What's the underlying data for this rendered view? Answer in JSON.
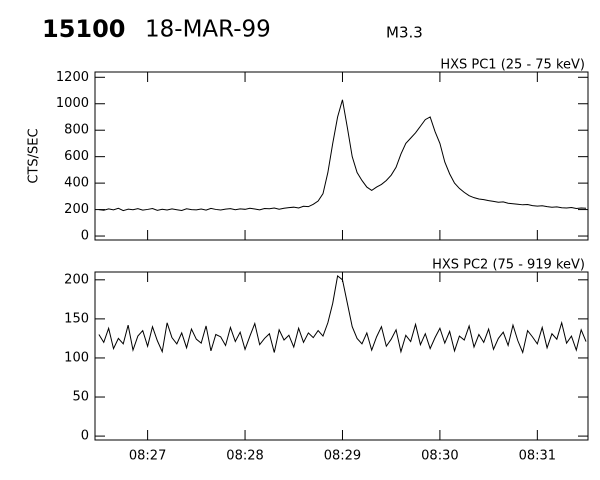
{
  "header": {
    "id": "15100",
    "date": "18-MAR-99",
    "class": "M3.3"
  },
  "chart_data": [
    {
      "type": "line",
      "title": "HXS PC1 (25 - 75 keV)",
      "y_label": "CTS/SEC",
      "x": [
        26.5,
        26.55,
        26.6,
        26.65,
        26.7,
        26.75,
        26.8,
        26.85,
        26.9,
        26.95,
        27,
        27.05,
        27.1,
        27.15,
        27.2,
        27.25,
        27.3,
        27.35,
        27.4,
        27.45,
        27.5,
        27.55,
        27.6,
        27.65,
        27.7,
        27.75,
        27.8,
        27.85,
        27.9,
        27.95,
        28,
        28.05,
        28.1,
        28.15,
        28.2,
        28.25,
        28.3,
        28.35,
        28.4,
        28.45,
        28.5,
        28.55,
        28.6,
        28.65,
        28.7,
        28.75,
        28.8,
        28.85,
        28.9,
        28.95,
        29,
        29.05,
        29.1,
        29.15,
        29.2,
        29.25,
        29.3,
        29.35,
        29.4,
        29.45,
        29.5,
        29.55,
        29.6,
        29.65,
        29.7,
        29.75,
        29.8,
        29.85,
        29.9,
        29.95,
        30,
        30.05,
        30.1,
        30.15,
        30.2,
        30.25,
        30.3,
        30.35,
        30.4,
        30.45,
        30.5,
        30.55,
        30.6,
        30.65,
        30.7,
        30.75,
        30.8,
        30.85,
        30.9,
        30.95,
        31,
        31.05,
        31.1,
        31.15,
        31.2,
        31.25,
        31.3,
        31.35,
        31.4,
        31.45,
        31.5
      ],
      "series": [
        {
          "color": "#000000",
          "values": [
            200,
            195,
            205,
            198,
            210,
            192,
            203,
            199,
            207,
            196,
            201,
            208,
            194,
            202,
            197,
            205,
            199,
            193,
            206,
            200,
            198,
            204,
            196,
            209,
            201,
            197,
            203,
            207,
            199,
            205,
            202,
            210,
            204,
            198,
            208,
            206,
            212,
            203,
            210,
            215,
            218,
            212,
            225,
            222,
            240,
            265,
            320,
            480,
            700,
            900,
            1030,
            820,
            600,
            480,
            420,
            370,
            345,
            370,
            390,
            420,
            460,
            520,
            620,
            700,
            740,
            780,
            830,
            880,
            900,
            790,
            700,
            560,
            470,
            400,
            360,
            330,
            305,
            290,
            280,
            275,
            268,
            262,
            255,
            258,
            248,
            244,
            240,
            236,
            238,
            230,
            226,
            229,
            222,
            218,
            220,
            214,
            212,
            216,
            208,
            212,
            210
          ]
        }
      ],
      "xlim": [
        26.46,
        31.52
      ],
      "xticks": [
        27,
        28,
        29,
        30,
        31
      ],
      "ylim": [
        -30,
        1240
      ],
      "yticks": [
        0,
        200,
        400,
        600,
        800,
        1000,
        1200
      ]
    },
    {
      "type": "line",
      "title": "HXS PC2 (75 - 919 keV)",
      "x": [
        26.5,
        26.55,
        26.6,
        26.65,
        26.7,
        26.75,
        26.8,
        26.85,
        26.9,
        26.95,
        27,
        27.05,
        27.1,
        27.15,
        27.2,
        27.25,
        27.3,
        27.35,
        27.4,
        27.45,
        27.5,
        27.55,
        27.6,
        27.65,
        27.7,
        27.75,
        27.8,
        27.85,
        27.9,
        27.95,
        28,
        28.05,
        28.1,
        28.15,
        28.2,
        28.25,
        28.3,
        28.35,
        28.4,
        28.45,
        28.5,
        28.55,
        28.6,
        28.65,
        28.7,
        28.75,
        28.8,
        28.85,
        28.9,
        28.95,
        29,
        29.05,
        29.1,
        29.15,
        29.2,
        29.25,
        29.3,
        29.35,
        29.4,
        29.45,
        29.5,
        29.55,
        29.6,
        29.65,
        29.7,
        29.75,
        29.8,
        29.85,
        29.9,
        29.95,
        30,
        30.05,
        30.1,
        30.15,
        30.2,
        30.25,
        30.3,
        30.35,
        30.4,
        30.45,
        30.5,
        30.55,
        30.6,
        30.65,
        30.7,
        30.75,
        30.8,
        30.85,
        30.9,
        30.95,
        31,
        31.05,
        31.1,
        31.15,
        31.2,
        31.25,
        31.3,
        31.35,
        31.4,
        31.45,
        31.5
      ],
      "series": [
        {
          "color": "#000000",
          "values": [
            130,
            120,
            138,
            112,
            125,
            118,
            142,
            110,
            128,
            135,
            115,
            140,
            122,
            108,
            145,
            126,
            118,
            132,
            113,
            137,
            124,
            119,
            141,
            109,
            130,
            127,
            116,
            139,
            121,
            133,
            111,
            128,
            144,
            117,
            125,
            131,
            107,
            136,
            123,
            129,
            114,
            138,
            120,
            132,
            126,
            135,
            128,
            145,
            170,
            205,
            200,
            170,
            140,
            125,
            118,
            132,
            110,
            127,
            140,
            115,
            124,
            136,
            108,
            129,
            121,
            143,
            117,
            131,
            112,
            126,
            138,
            119,
            134,
            109,
            128,
            123,
            141,
            114,
            130,
            120,
            137,
            111,
            125,
            133,
            116,
            142,
            122,
            107,
            135,
            127,
            118,
            139,
            113,
            131,
            124,
            145,
            119,
            128,
            110,
            136,
            121
          ]
        }
      ],
      "xlim": [
        26.46,
        31.52
      ],
      "xticks": [
        {
          "value": 27,
          "label": "08:27"
        },
        {
          "value": 28,
          "label": "08:28"
        },
        {
          "value": 29,
          "label": "08:29"
        },
        {
          "value": 30,
          "label": "08:30"
        },
        {
          "value": 31,
          "label": "08:31"
        }
      ],
      "ylim": [
        -5,
        210
      ],
      "yticks": [
        0,
        50,
        100,
        150,
        200
      ]
    }
  ]
}
